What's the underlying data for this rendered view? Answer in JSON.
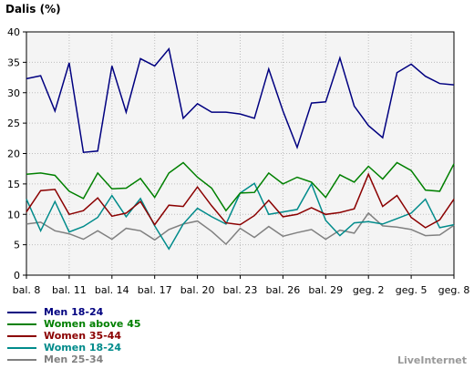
{
  "chart_data": {
    "type": "line",
    "title": "",
    "ylabel": "Dalis (%)",
    "xlabel": "",
    "ylim": [
      0,
      40
    ],
    "yticks": [
      "0",
      "5",
      "10",
      "15",
      "20",
      "25",
      "30",
      "35",
      "40"
    ],
    "xtick_labels": [
      "bal. 8",
      "bal. 11",
      "bal. 14",
      "bal. 17",
      "bal. 20",
      "bal. 23",
      "bal. 26",
      "bal. 29",
      "geg. 2",
      "geg. 5",
      "geg. 8"
    ],
    "grid": true,
    "legend_placement": "bottom-left",
    "series": [
      {
        "name": "Men 18-24",
        "color": "#000080",
        "values": [
          32.3,
          32.8,
          27,
          34.9,
          20.2,
          20.4,
          34.4,
          26.8,
          35.6,
          34.4,
          37.2,
          25.8,
          28.2,
          26.8,
          26.8,
          26.5,
          25.8,
          33.9,
          27,
          21,
          28.3,
          28.5,
          35.7,
          27.8,
          24.6,
          22.6,
          33.3,
          34.7,
          32.7,
          31.5,
          31.3
        ]
      },
      {
        "name": "Women above 45",
        "color": "#008000",
        "values": [
          16.6,
          16.8,
          16.4,
          13.8,
          12.6,
          16.8,
          14.2,
          14.3,
          15.9,
          12.8,
          16.8,
          18.5,
          16.1,
          14.3,
          10.6,
          13.5,
          13.6,
          16.8,
          15,
          16.1,
          15.3,
          12.8,
          16.5,
          15.3,
          17.9,
          15.8,
          18.5,
          17.2,
          14,
          13.8,
          18.3
        ]
      },
      {
        "name": "Women 35-44",
        "color": "#8B0000",
        "values": [
          10.4,
          13.9,
          14.1,
          10,
          10.6,
          12.7,
          9.7,
          10.2,
          12.1,
          8.3,
          11.5,
          11.3,
          14.5,
          11.4,
          8.6,
          8.3,
          9.8,
          12.3,
          9.6,
          10,
          11.1,
          10,
          10.3,
          10.9,
          16.6,
          11.3,
          13.1,
          9.5,
          7.8,
          9.1,
          12.5
        ]
      },
      {
        "name": "Women 18-24",
        "color": "#008B8B",
        "values": [
          12.5,
          7.3,
          12.1,
          7.1,
          8,
          9.5,
          13.1,
          9.6,
          12.6,
          8.1,
          4.3,
          8.4,
          11,
          9.6,
          8.4,
          13.5,
          15.1,
          10,
          10.4,
          10.8,
          15,
          9,
          6.5,
          8.6,
          8.8,
          8.4,
          9.3,
          10.2,
          12.5,
          7.8,
          8.3
        ]
      },
      {
        "name": "Men 25-34",
        "color": "#808080",
        "values": [
          8.4,
          8.7,
          7.3,
          6.8,
          5.9,
          7.3,
          5.9,
          7.7,
          7.3,
          5.8,
          7.5,
          8.4,
          8.9,
          7.2,
          5.1,
          7.7,
          6.2,
          8,
          6.4,
          7,
          7.5,
          5.9,
          7.4,
          6.9,
          10.2,
          8.1,
          7.9,
          7.5,
          6.5,
          6.6,
          8.2
        ]
      }
    ]
  },
  "brand": "LiveInternet"
}
